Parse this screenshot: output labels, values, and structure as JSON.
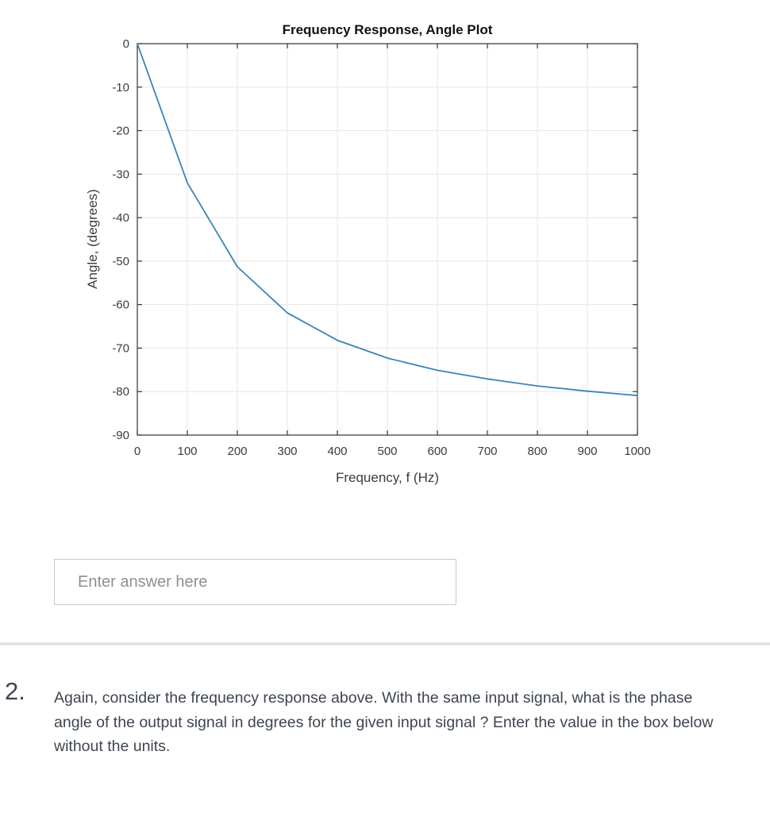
{
  "chart_data": {
    "type": "line",
    "title": "Frequency Response, Angle Plot",
    "xlabel": "Frequency, f (Hz)",
    "ylabel": "Angle, (degrees)",
    "x": [
      0,
      100,
      200,
      300,
      400,
      500,
      600,
      700,
      800,
      900,
      1000
    ],
    "y": [
      0,
      -32.0,
      -51.3,
      -61.9,
      -68.2,
      -72.3,
      -75.1,
      -77.1,
      -78.7,
      -79.9,
      -80.9
    ],
    "xlim": [
      0,
      1000
    ],
    "ylim": [
      -90,
      0
    ],
    "xticks": [
      0,
      100,
      200,
      300,
      400,
      500,
      600,
      700,
      800,
      900,
      1000
    ],
    "yticks": [
      0,
      -10,
      -20,
      -30,
      -40,
      -50,
      -60,
      -70,
      -80,
      -90
    ],
    "grid": true,
    "legend": "none",
    "colors": {
      "line": "#3a85b5",
      "axis": "#333333",
      "grid": "#e6e6e6",
      "title": "#111111",
      "tick_label": "#3c3c3c"
    }
  },
  "answer_input": {
    "placeholder": "Enter answer here",
    "value": ""
  },
  "question": {
    "number": "2.",
    "text": "Again, consider the frequency response above. With the same input signal, what is the phase angle of the output signal in degrees for the given input signal ? Enter the value in the box below without the units."
  }
}
